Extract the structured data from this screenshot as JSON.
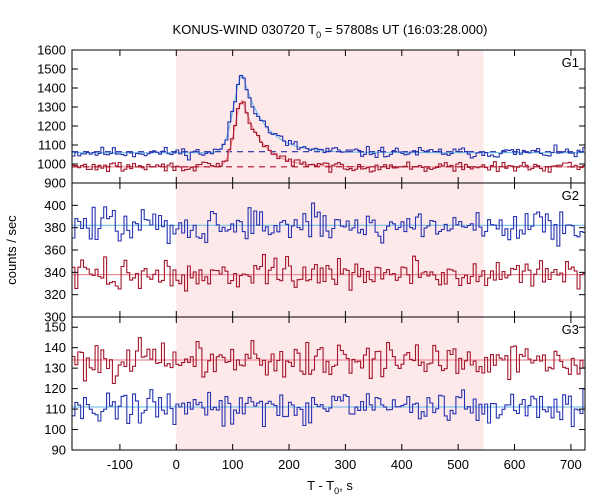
{
  "chart_data": {
    "type": "line",
    "title_main": "KONUS-WIND 030720 T",
    "title_sub": "0",
    "title_rest": " = 57808s UT (16:03:28.000)",
    "xlabel_main": "T - T",
    "xlabel_sub": "0",
    "xlabel_rest": ", s",
    "ylabel": "counts / sec",
    "xlim": [
      -185,
      725
    ],
    "xticks": [
      -100,
      0,
      100,
      200,
      300,
      400,
      500,
      600,
      700
    ],
    "highlight": {
      "x0": 0,
      "x1": 545,
      "color": "#fde8ea"
    },
    "colors": {
      "blue": "#2633b0",
      "red": "#a3162b",
      "fit_blue": "#7ec3ea",
      "fit_red": "#ee8f98",
      "bg_blue": "#1f2fa8",
      "bg_red": "#b0102a"
    },
    "panels": [
      {
        "name": "G1",
        "ylim": [
          900,
          1600
        ],
        "yticks": [
          900,
          1000,
          1100,
          1200,
          1300,
          1400,
          1500,
          1600
        ],
        "series": [
          {
            "color_key": "blue",
            "base": 1060,
            "noise": 14,
            "peak": 410,
            "peak_t": 118,
            "rise": 16,
            "decay": 38,
            "bg_line": 1065,
            "fit_key": "fit_blue",
            "seed": 11
          },
          {
            "color_key": "red",
            "base": 985,
            "noise": 12,
            "peak": 350,
            "peak_t": 118,
            "rise": 14,
            "decay": 34,
            "bg_line": 985,
            "fit_key": "fit_red",
            "seed": 29
          }
        ]
      },
      {
        "name": "G2",
        "ylim": [
          300,
          420
        ],
        "yticks": [
          300,
          320,
          340,
          360,
          380,
          400
        ],
        "series": [
          {
            "color_key": "blue",
            "base": 382,
            "noise": 8,
            "peak": 0,
            "fit_key": "fit_blue",
            "seed": 47
          },
          {
            "color_key": "red",
            "base": 338,
            "noise": 7,
            "peak": 0,
            "fit_key": "fit_red",
            "seed": 73
          }
        ]
      },
      {
        "name": "G3",
        "ylim": [
          90,
          155
        ],
        "yticks": [
          90,
          100,
          110,
          120,
          130,
          140,
          150
        ],
        "series": [
          {
            "color_key": "red",
            "base": 134,
            "noise": 4.5,
            "peak": 0,
            "fit_key": "fit_red",
            "seed": 101
          },
          {
            "color_key": "blue",
            "base": 111,
            "noise": 4,
            "peak": 0,
            "fit_key": "fit_blue",
            "seed": 131
          }
        ]
      }
    ]
  }
}
